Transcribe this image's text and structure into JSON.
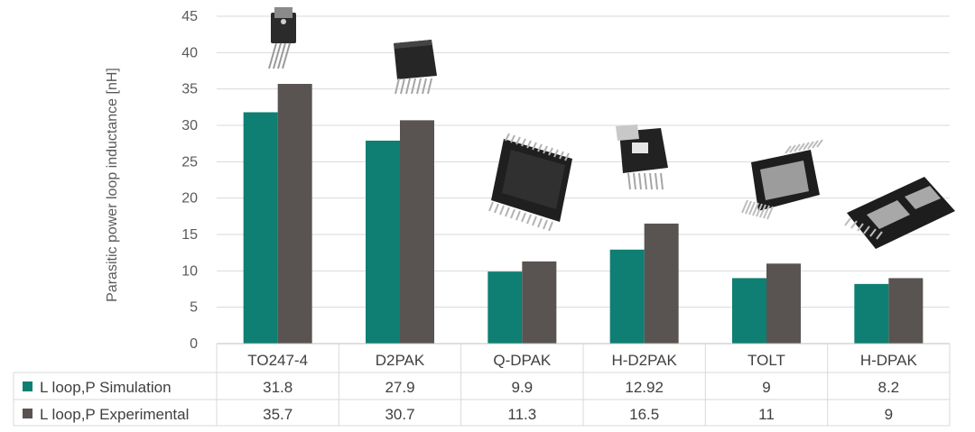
{
  "chart_data": {
    "type": "bar",
    "title": "",
    "xlabel": "",
    "ylabel": "Parasitic power loop inductance [nH]",
    "ylim": [
      0,
      45
    ],
    "yticks": [
      0,
      5,
      10,
      15,
      20,
      25,
      30,
      35,
      40,
      45
    ],
    "grid": true,
    "legend_placement": "data table rows below the chart",
    "categories": [
      "TO247-4",
      "D2PAK",
      "Q-DPAK",
      "H-D2PAK",
      "TOLT",
      "H-DPAK"
    ],
    "series": [
      {
        "name": "L loop,P Simulation",
        "color": "#0e7f72",
        "values": [
          31.8,
          27.9,
          9.9,
          12.92,
          9,
          8.2
        ],
        "labels": [
          "31.8",
          "27.9",
          "9.9",
          "12.92",
          "9",
          "8.2"
        ]
      },
      {
        "name": "L loop,P Experimental",
        "color": "#595451",
        "values": [
          35.7,
          30.7,
          11.3,
          16.5,
          11,
          9
        ],
        "labels": [
          "35.7",
          "30.7",
          "11.3",
          "16.5",
          "11",
          "9"
        ]
      }
    ],
    "package_images": [
      "to247-4-package-icon",
      "d2pak-package-icon",
      "q-dpak-package-icon",
      "h-d2pak-package-icon",
      "tolt-package-icon",
      "h-dpak-package-icon"
    ]
  }
}
